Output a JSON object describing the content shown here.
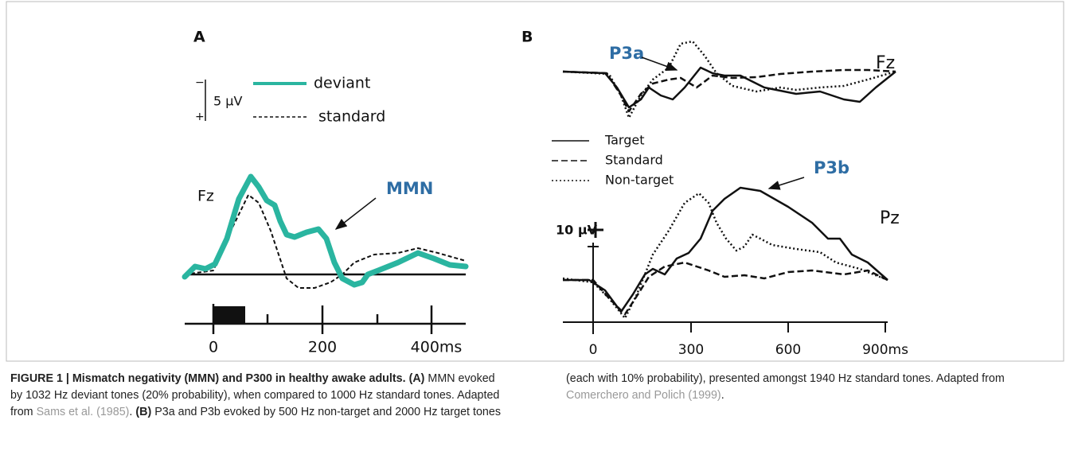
{
  "panel_a": {
    "label": "A",
    "scale_minus": "−",
    "scale_plus": "+",
    "scale": "5  μV",
    "legend": [
      "deviant",
      "standard"
    ],
    "electrode": "Fz",
    "annotation": "MMN",
    "xticks": [
      "0",
      "200",
      "400ms"
    ]
  },
  "panel_b": {
    "label": "B",
    "annotations": [
      "P3a",
      "P3b"
    ],
    "electrodes": [
      "Fz",
      "Pz"
    ],
    "legend": [
      "Target",
      "Standard",
      "Non-target"
    ],
    "scale": "10 µV",
    "xticks": [
      "0",
      "300",
      "600",
      "900ms"
    ]
  },
  "caption": {
    "title": "FIGURE 1 | Mismatch negativity (MMN) and P300 in healthy awake adults.",
    "a_label": "(A)",
    "a_text": "MMN evoked by 1032 Hz deviant tones (20% probability), when compared to 1000 Hz standard tones. Adapted from",
    "a_ref": "Sams et al. (1985)",
    "b_label": "(B)",
    "b_text": "P3a and P3b evoked by 500 Hz non-target and 2000 Hz target tones (each with 10% probability), presented amongst 1940 Hz standard tones. Adapted from",
    "b_ref": "Comerchero and Polich (1999)"
  }
}
